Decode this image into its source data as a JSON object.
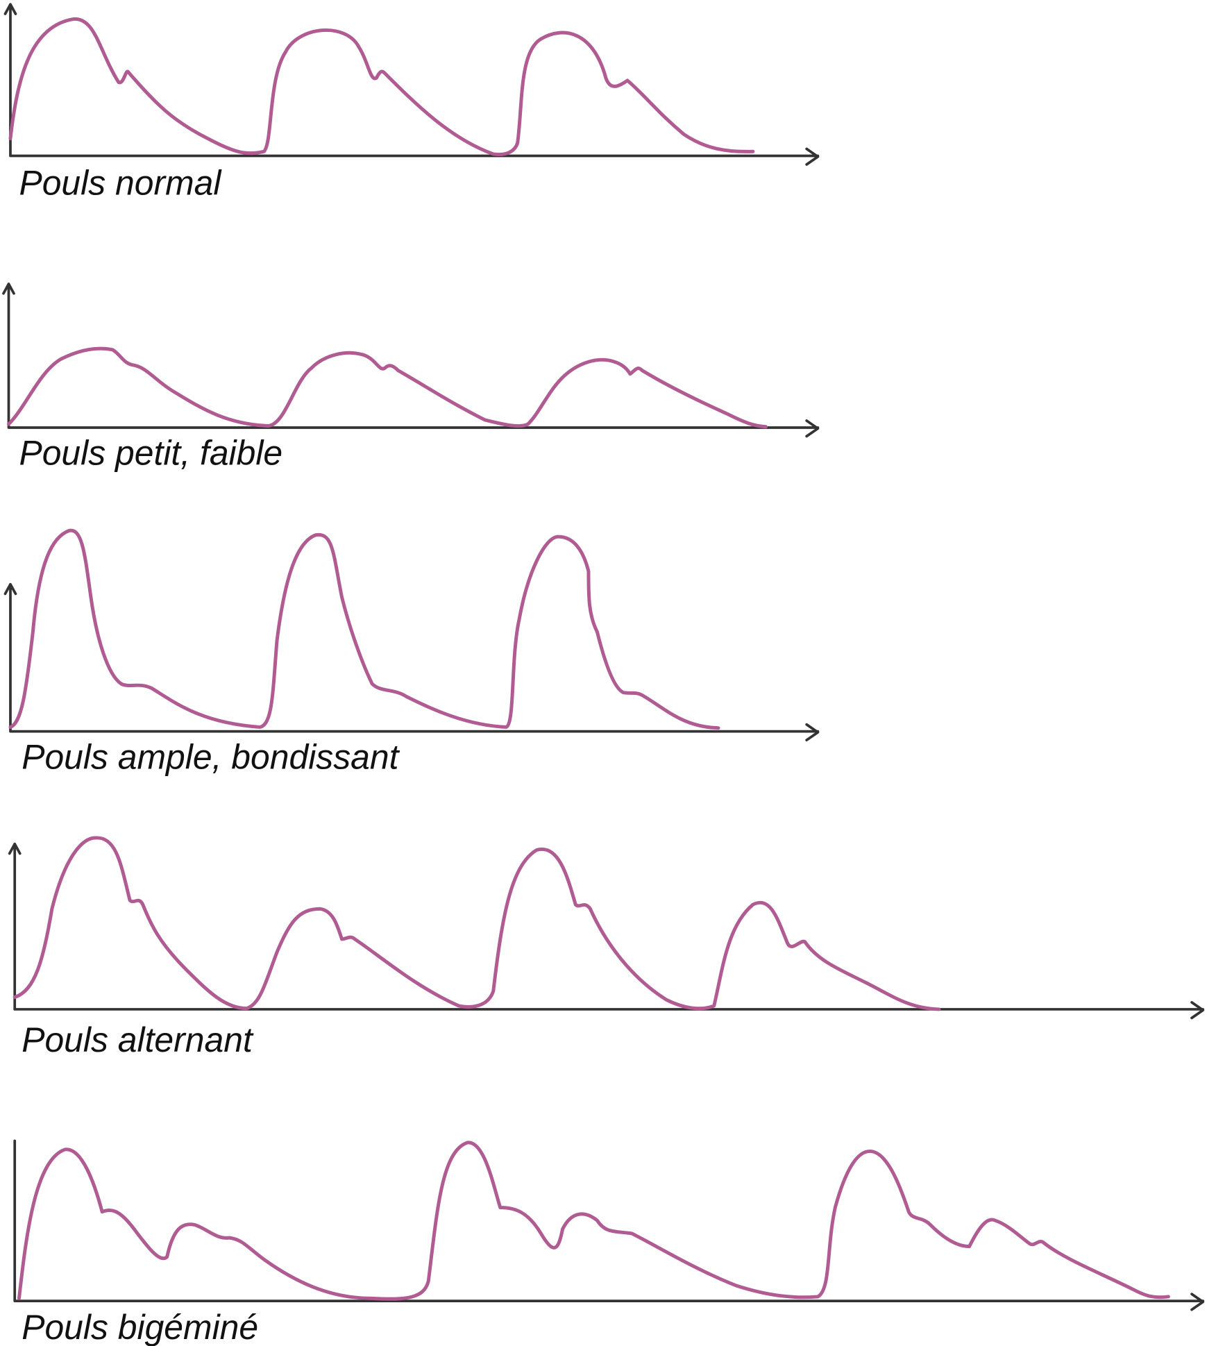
{
  "diagrams": [
    {
      "label": "Pouls normal"
    },
    {
      "label": "Pouls petit, faible"
    },
    {
      "label": "Pouls ample, bondissant"
    },
    {
      "label": "Pouls alternant"
    },
    {
      "label": "Pouls bigéminé"
    }
  ]
}
